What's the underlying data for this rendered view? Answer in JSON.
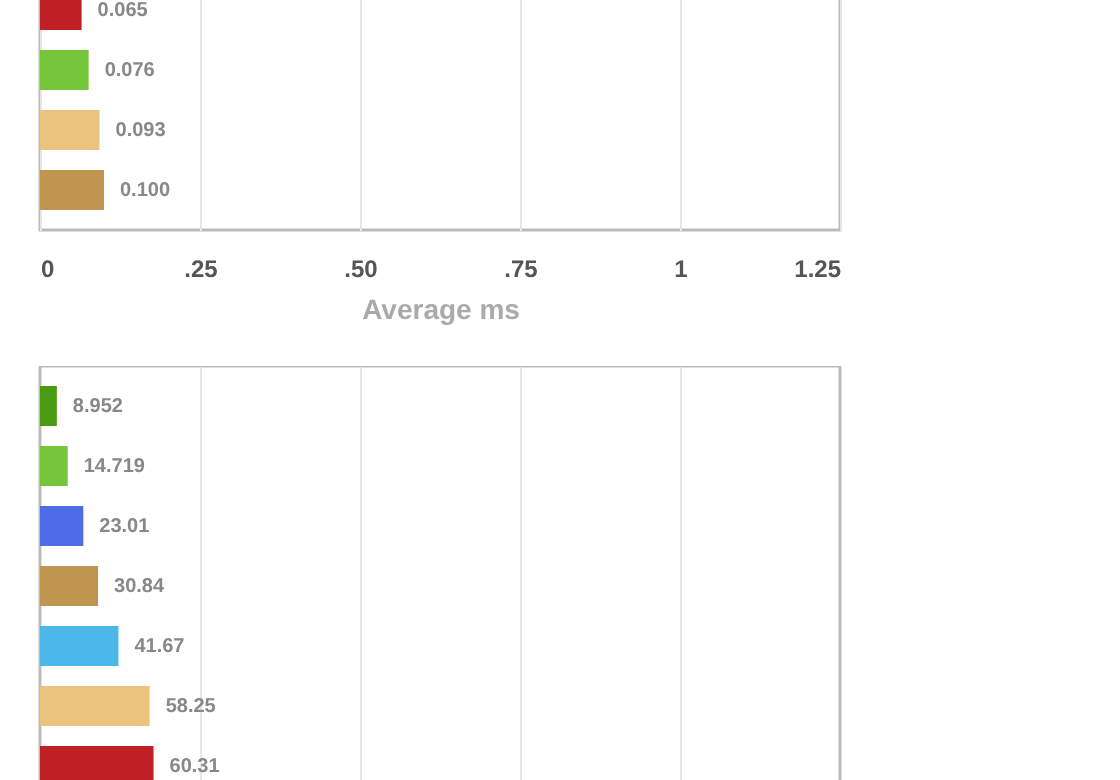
{
  "chart_data": [
    {
      "type": "bar",
      "orientation": "horizontal",
      "xlabel": "Average ms",
      "categories": [
        null,
        null,
        null,
        null
      ],
      "values": [
        0.065,
        0.076,
        0.093,
        0.1
      ],
      "value_labels": [
        "0.065",
        "0.076",
        "0.093",
        "0.100"
      ],
      "colors": [
        "#be2025",
        "#76c63b",
        "#ecc27f",
        "#bf9550"
      ],
      "xlim": [
        0,
        1.25
      ],
      "xticks": [
        0,
        {
          "value": 0.25,
          "label": ".25"
        },
        {
          "value": 0.5,
          "label": ".50"
        },
        {
          "value": 0.75,
          "label": ".75"
        },
        1,
        1.25
      ],
      "grid": "x"
    },
    {
      "type": "bar",
      "orientation": "horizontal",
      "categories": [
        null,
        null,
        null,
        null,
        null,
        null,
        null
      ],
      "values": [
        8.952,
        14.719,
        23.01,
        30.84,
        41.67,
        58.25,
        60.31
      ],
      "value_labels": [
        "8.952",
        "14.719",
        "23.01",
        "30.84",
        "41.67",
        "58.25",
        "60.31"
      ],
      "colors": [
        "#4a9a12",
        "#76c63b",
        "#4d6de8",
        "#bf9550",
        "#4cb8ea",
        "#ecc27f",
        "#be2025"
      ],
      "xlim": [
        0,
        425
      ],
      "xticks": [
        {
          "value": 85,
          "label": null
        },
        {
          "value": 170,
          "label": null
        },
        {
          "value": 255,
          "label": null
        },
        {
          "value": 340,
          "label": null
        }
      ],
      "grid": "x"
    }
  ]
}
